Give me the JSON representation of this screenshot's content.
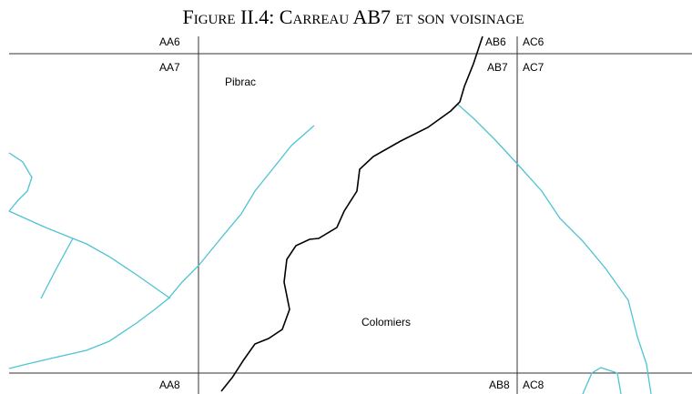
{
  "title": "Figure II.4: Carreau AB7 et son voisinage",
  "labels": [
    "AA6",
    "AB6",
    "AC6",
    "AA7",
    "AB7",
    "AC7",
    "AA8",
    "AB8",
    "AC8",
    "Pibrac",
    "Colomiers"
  ]
}
